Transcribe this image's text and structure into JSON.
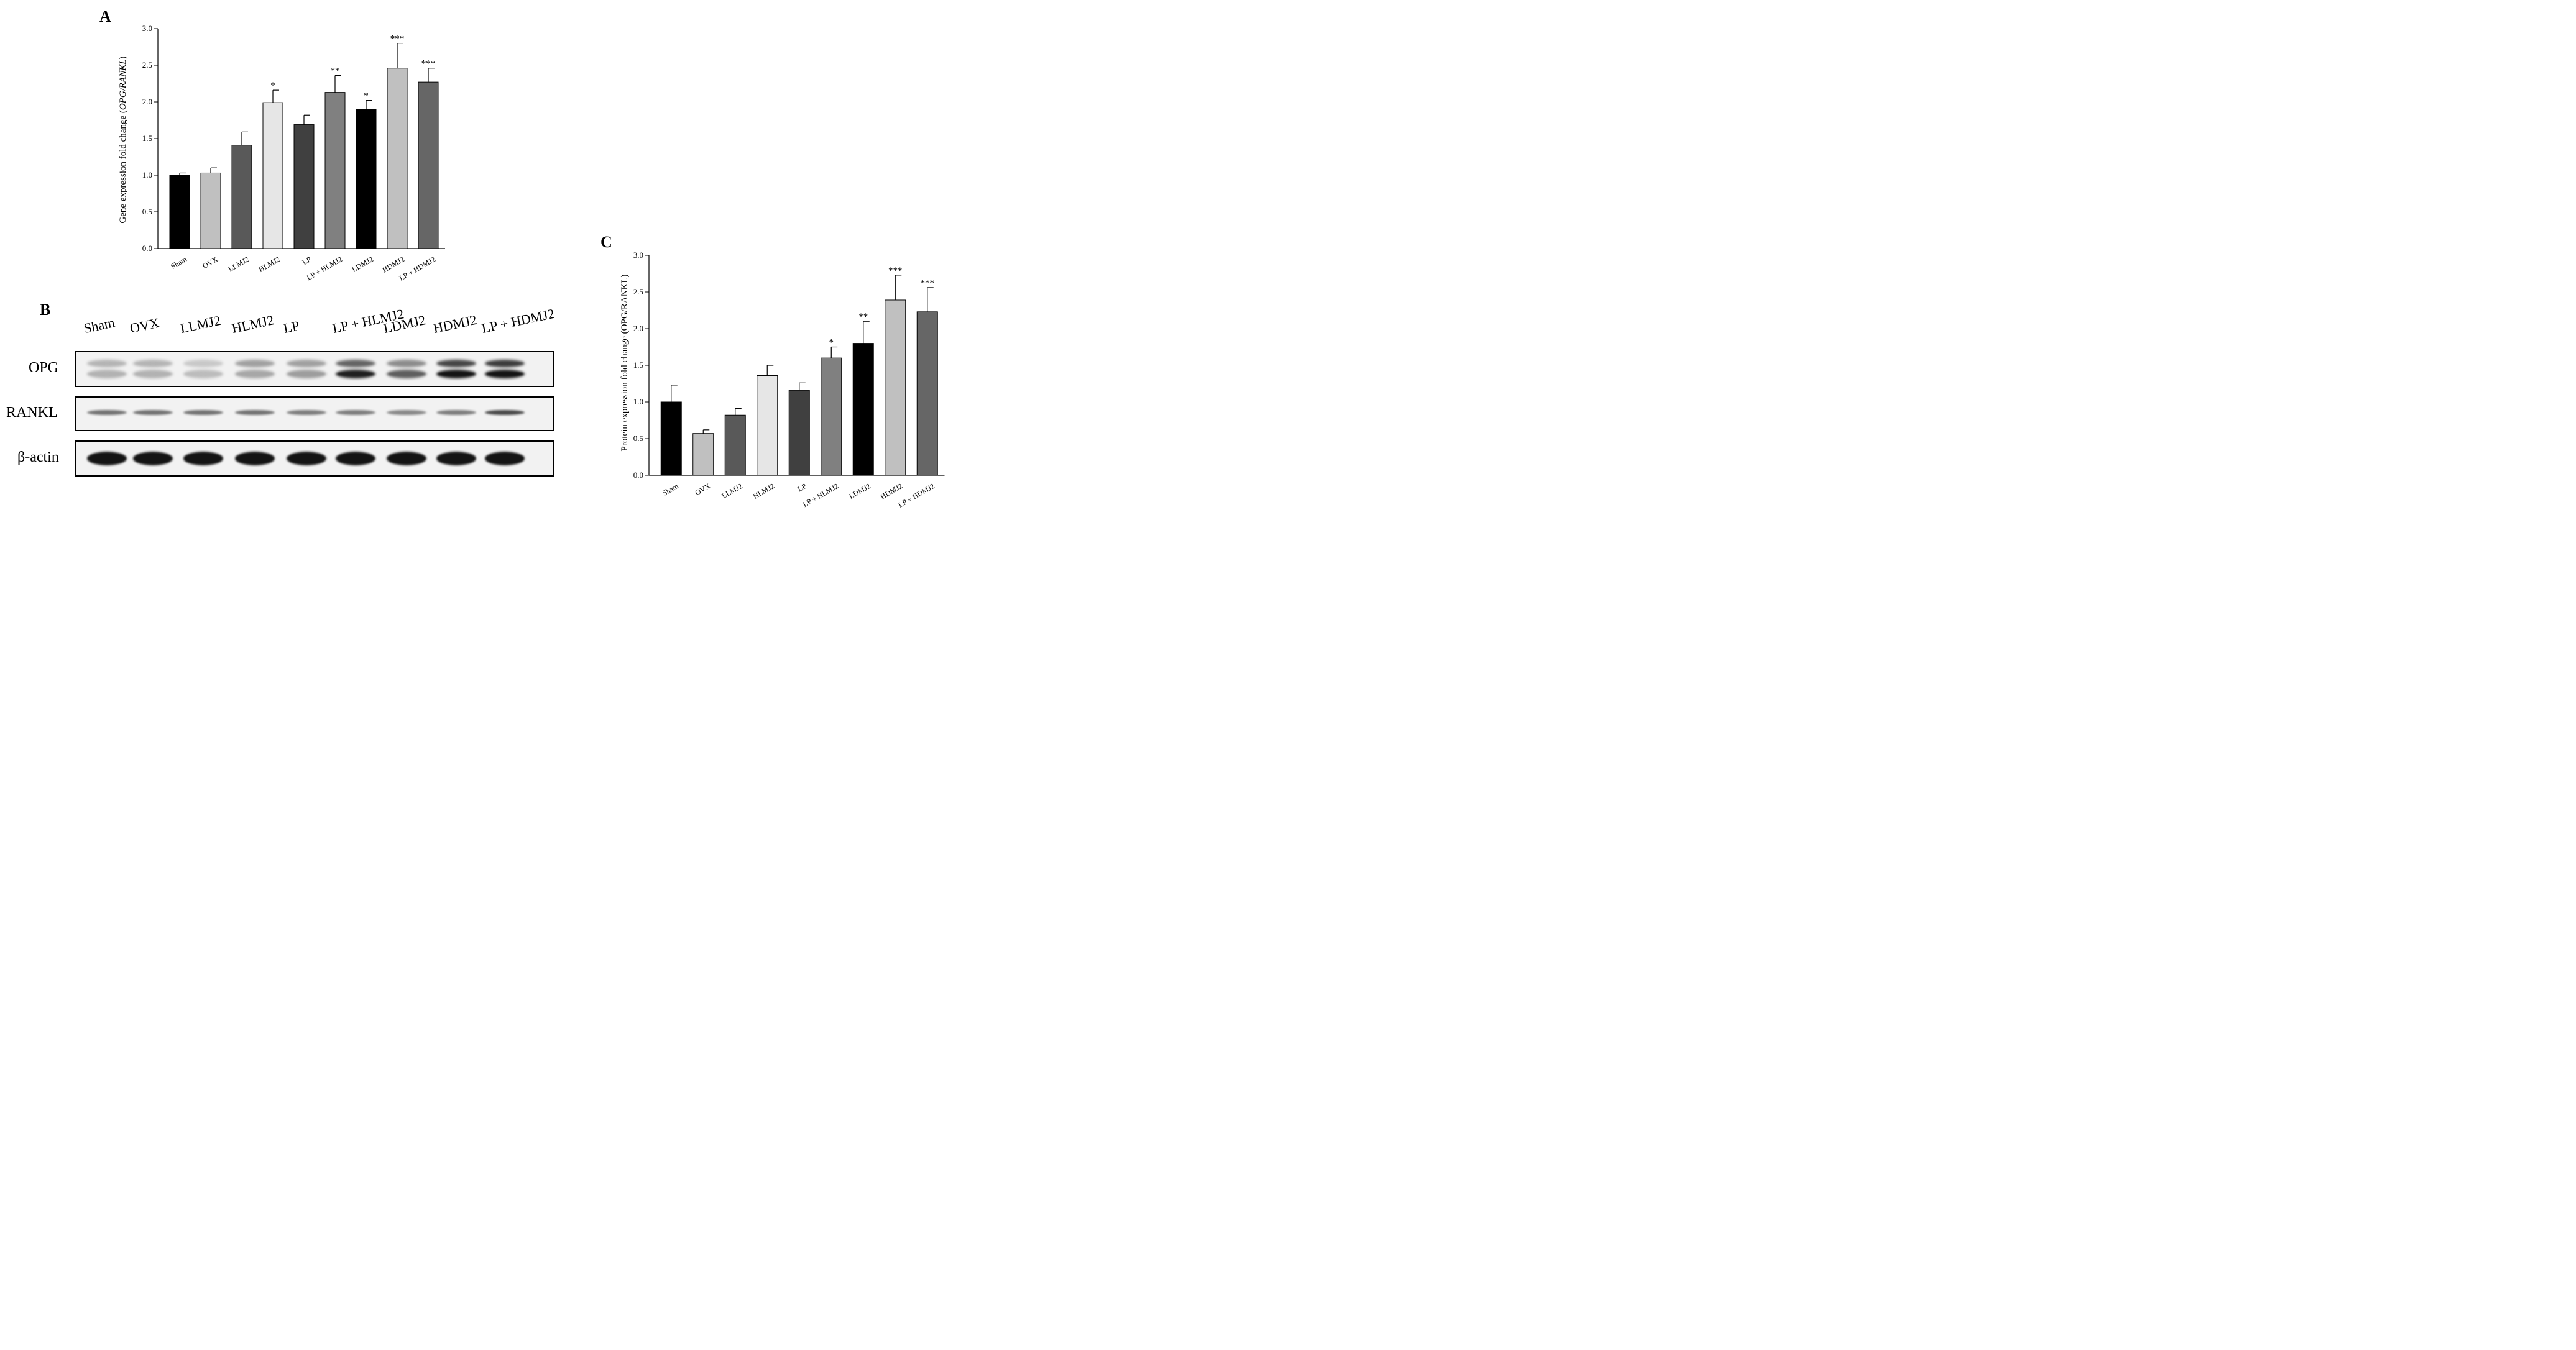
{
  "panels": {
    "a_letter": "A",
    "b_letter": "B",
    "c_letter": "C"
  },
  "chart_data": [
    {
      "id": "A",
      "type": "bar",
      "ylabel_plain": "Gene expression fold change (",
      "ylabel_italic": "OPG/RANKL",
      "ylabel_close": ")",
      "ylim": [
        0,
        3.0
      ],
      "yticks": [
        "0.0",
        "0.5",
        "1.0",
        "1.5",
        "2.0",
        "2.5",
        "3.0"
      ],
      "categories": [
        "Sham",
        "OVX",
        "LLMJ2",
        "HLMJ2",
        "LP",
        "LP + HLMJ2",
        "LDMJ2",
        "HDMJ2",
        "LP + HDMJ2"
      ],
      "values": [
        1.0,
        1.03,
        1.41,
        1.99,
        1.69,
        2.13,
        1.9,
        2.46,
        2.27
      ],
      "errors": [
        0.03,
        0.07,
        0.18,
        0.17,
        0.13,
        0.23,
        0.12,
        0.34,
        0.19
      ],
      "significance": [
        "",
        "",
        "",
        "*",
        "",
        "**",
        "*",
        "***",
        "***"
      ],
      "colors": [
        "#000000",
        "#c0c0c0",
        "#595959",
        "#e6e6e6",
        "#404040",
        "#808080",
        "#000000",
        "#c0c0c0",
        "#666666"
      ]
    },
    {
      "id": "C",
      "type": "bar",
      "ylabel": "Protein expression fold change (OPG/RANKL)",
      "ylim": [
        0,
        3.0
      ],
      "yticks": [
        "0.0",
        "0.5",
        "1.0",
        "1.5",
        "2.0",
        "2.5",
        "3.0"
      ],
      "categories": [
        "Sham",
        "OVX",
        "LLMJ2",
        "HLMJ2",
        "LP",
        "LP + HLMJ2",
        "LDMJ2",
        "HDMJ2",
        "LP + HDMJ2"
      ],
      "values": [
        1.0,
        0.57,
        0.82,
        1.36,
        1.16,
        1.6,
        1.8,
        2.39,
        2.23
      ],
      "errors": [
        0.23,
        0.05,
        0.09,
        0.14,
        0.1,
        0.15,
        0.3,
        0.34,
        0.33
      ],
      "significance": [
        "",
        "",
        "",
        "",
        "",
        "*",
        "**",
        "***",
        "***"
      ],
      "colors": [
        "#000000",
        "#c0c0c0",
        "#595959",
        "#e6e6e6",
        "#404040",
        "#808080",
        "#000000",
        "#c0c0c0",
        "#666666"
      ]
    }
  ],
  "blot": {
    "lanes": [
      "Sham",
      "OVX",
      "LLMJ2",
      "HLMJ2",
      "LP",
      "LP + HLMJ2",
      "LDMJ2",
      "HDMJ2",
      "LP + HDMJ2"
    ],
    "rows": [
      {
        "label": "OPG",
        "upper_intensity": [
          0.25,
          0.25,
          0.15,
          0.35,
          0.35,
          0.65,
          0.45,
          0.8,
          0.85
        ],
        "lower_intensity": [
          0.25,
          0.25,
          0.2,
          0.3,
          0.35,
          0.95,
          0.65,
          1.0,
          1.0
        ]
      },
      {
        "label": "RANKL",
        "intensity": [
          0.55,
          0.55,
          0.55,
          0.55,
          0.5,
          0.5,
          0.45,
          0.5,
          0.75
        ]
      },
      {
        "label": "β-actin",
        "intensity": [
          1,
          1,
          1,
          1,
          1,
          1,
          1,
          1,
          1
        ]
      }
    ]
  }
}
